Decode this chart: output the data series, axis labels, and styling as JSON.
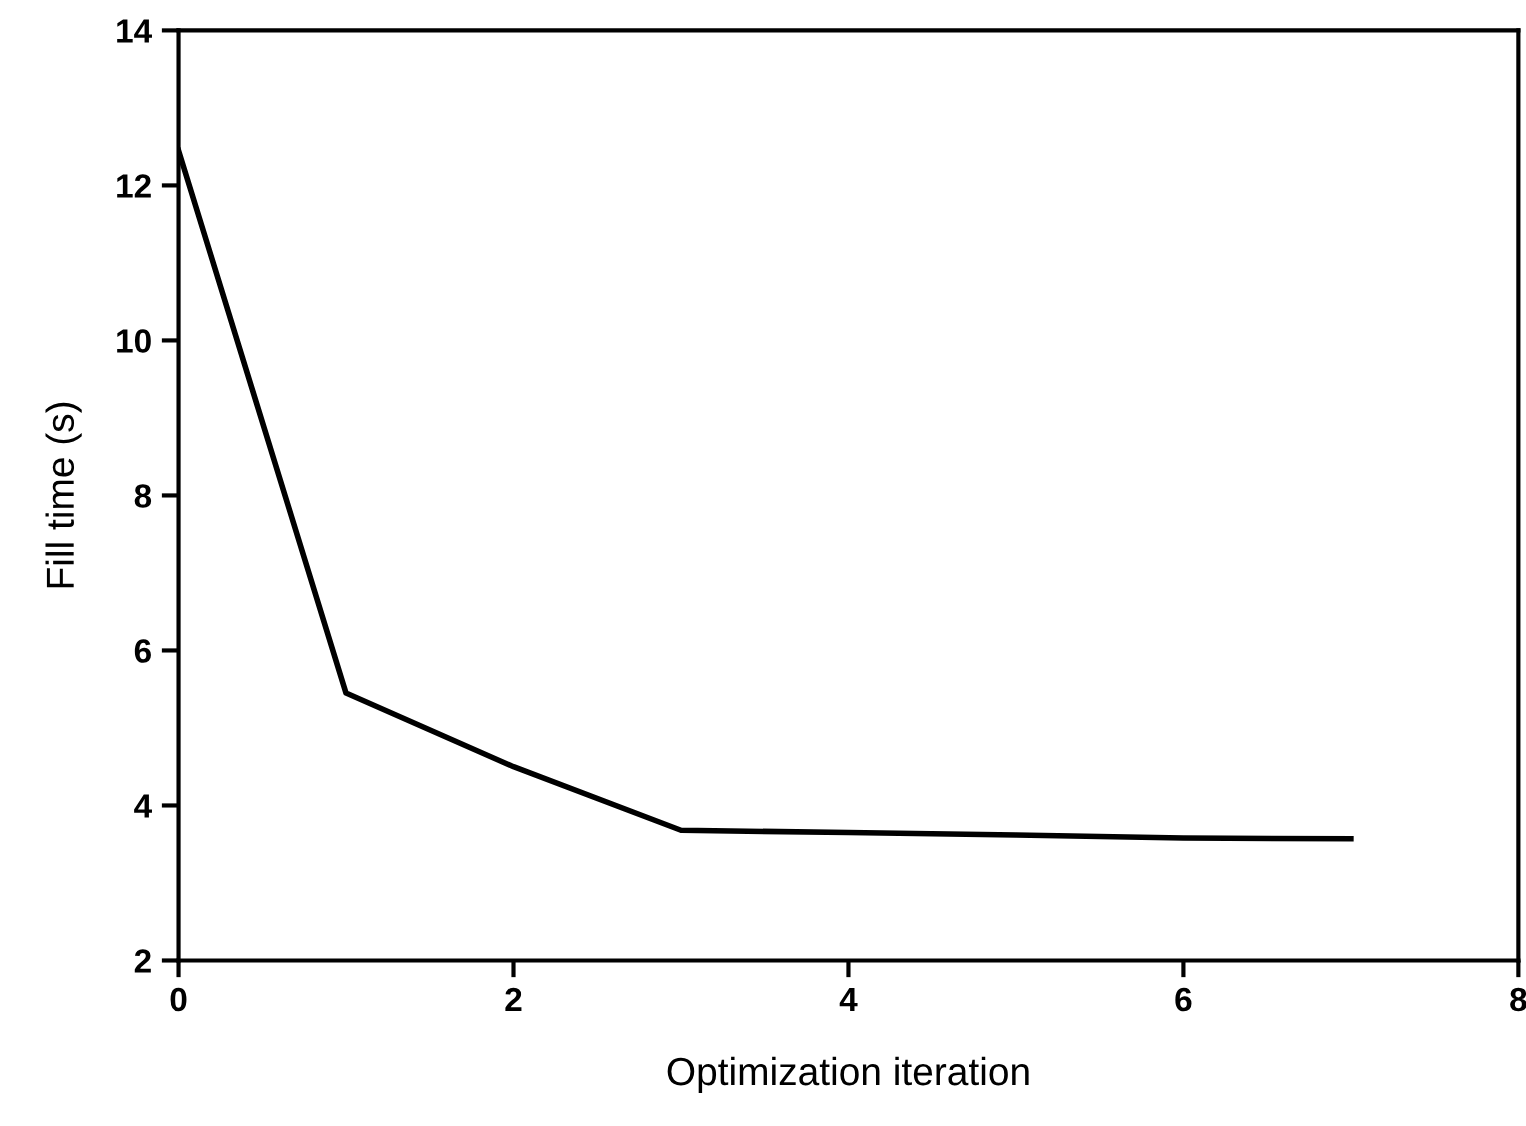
{
  "chart_data": {
    "type": "line",
    "xlabel": "Optimization iteration",
    "ylabel": "Fill time (s)",
    "x": [
      0,
      1,
      2,
      3,
      4,
      5,
      6,
      7
    ],
    "series": [
      {
        "color": "#000000",
        "values": [
          12.45,
          5.45,
          4.5,
          3.68,
          3.65,
          3.62,
          3.58,
          3.57
        ]
      }
    ],
    "xlim": [
      0,
      8
    ],
    "xticks": [
      0,
      2,
      4,
      6,
      8
    ],
    "ylim": [
      2,
      14
    ],
    "yticks": [
      2,
      4,
      6,
      8,
      10,
      12,
      14
    ],
    "grid": false,
    "legend": false,
    "marker": "none",
    "line_style": "solid"
  }
}
